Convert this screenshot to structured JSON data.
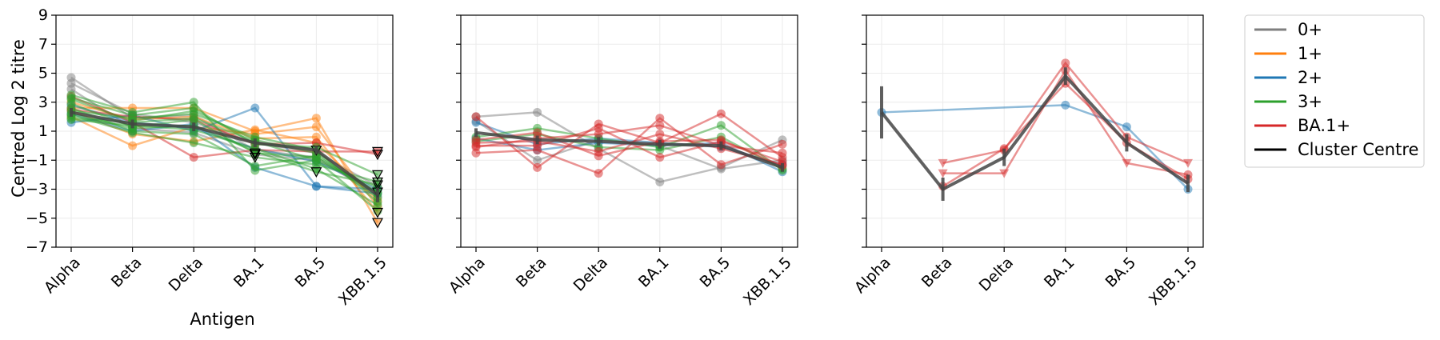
{
  "chart_data": {
    "type": "line",
    "ylabel": "Centred Log 2 titre",
    "xlabel": "Antigen",
    "categories": [
      "Alpha",
      "Beta",
      "Delta",
      "BA.1",
      "BA.5",
      "XBB.1.5"
    ],
    "ylim": [
      -7,
      9
    ],
    "yticks": [
      -7,
      -5,
      -3,
      -1,
      1,
      3,
      5,
      7,
      9
    ],
    "grid": true,
    "legend": {
      "placement": "outside-right",
      "entries": [
        {
          "label": "0+",
          "color": "#7f7f7f"
        },
        {
          "label": "1+",
          "color": "#ff7f0e"
        },
        {
          "label": "2+",
          "color": "#1f77b4"
        },
        {
          "label": "3+",
          "color": "#2ca02c"
        },
        {
          "label": "BA.1+",
          "color": "#d62728"
        },
        {
          "label": "Cluster Centre",
          "color": "#000000"
        }
      ]
    },
    "panels": [
      {
        "name": "panel-1",
        "show_ylabel": true,
        "show_xlabel": true,
        "centre": [
          2.3,
          1.5,
          1.3,
          0.2,
          -0.3,
          -3.4
        ],
        "centre_err": [
          0.3,
          0.3,
          0.3,
          0.3,
          0.3,
          0.5
        ],
        "series": [
          {
            "group": "0+",
            "values": [
              4.7,
              1.9,
              2.1,
              -0.3,
              -0.8,
              -3.5
            ],
            "below": [
              false,
              false,
              false,
              false,
              false,
              false
            ]
          },
          {
            "group": "0+",
            "values": [
              4.3,
              2.2,
              1.6,
              0.2,
              -0.5,
              -2.8
            ],
            "below": [
              false,
              false,
              false,
              false,
              false,
              false
            ]
          },
          {
            "group": "0+",
            "values": [
              3.9,
              1.2,
              0.9,
              -0.6,
              -1.0,
              -3.2
            ],
            "below": [
              false,
              false,
              false,
              true,
              false,
              true
            ]
          },
          {
            "group": "1+",
            "values": [
              2.6,
              2.6,
              2.6,
              1.0,
              1.9,
              -5.3
            ],
            "below": [
              false,
              false,
              false,
              false,
              false,
              true
            ]
          },
          {
            "group": "1+",
            "values": [
              2.0,
              0.0,
              1.3,
              0.8,
              1.3,
              -4.2
            ],
            "below": [
              false,
              false,
              false,
              false,
              false,
              false
            ]
          },
          {
            "group": "1+",
            "values": [
              3.0,
              1.8,
              2.0,
              0.5,
              0.6,
              -4.6
            ],
            "below": [
              false,
              false,
              false,
              false,
              false,
              true
            ]
          },
          {
            "group": "1+",
            "values": [
              2.4,
              0.8,
              0.3,
              1.1,
              0.2,
              -3.8
            ],
            "below": [
              false,
              false,
              false,
              false,
              false,
              false
            ]
          },
          {
            "group": "2+",
            "values": [
              1.6,
              2.1,
              1.0,
              2.6,
              -2.8,
              -3.0
            ],
            "below": [
              false,
              false,
              false,
              false,
              false,
              false
            ]
          },
          {
            "group": "2+",
            "values": [
              2.2,
              1.0,
              1.5,
              -1.5,
              -2.8,
              -3.3
            ],
            "below": [
              false,
              false,
              false,
              false,
              false,
              false
            ]
          },
          {
            "group": "2+",
            "values": [
              2.8,
              1.6,
              1.2,
              -0.2,
              -1.1,
              -3.0
            ],
            "below": [
              false,
              false,
              false,
              false,
              false,
              false
            ]
          },
          {
            "group": "BA.1+",
            "values": [
              3.4,
              1.6,
              -0.8,
              -0.3,
              -0.4,
              -0.4
            ],
            "below": [
              false,
              false,
              false,
              false,
              false,
              true
            ]
          },
          {
            "group": "BA.1+",
            "values": [
              2.5,
              2.0,
              1.8,
              0.1,
              0.2,
              -0.6
            ],
            "below": [
              false,
              false,
              false,
              false,
              false,
              true
            ]
          },
          {
            "group": "3+",
            "values": [
              3.5,
              2.3,
              3.0,
              -1.7,
              -1.0,
              -2.9
            ],
            "below": [
              false,
              false,
              false,
              false,
              false,
              false
            ]
          },
          {
            "group": "3+",
            "values": [
              3.2,
              1.7,
              2.4,
              0.4,
              -0.5,
              -3.6
            ],
            "below": [
              false,
              false,
              false,
              false,
              false,
              false
            ]
          },
          {
            "group": "3+",
            "values": [
              2.9,
              1.3,
              1.8,
              -0.5,
              -0.8,
              -3.3
            ],
            "below": [
              false,
              false,
              false,
              true,
              false,
              false
            ]
          },
          {
            "group": "3+",
            "values": [
              2.4,
              1.9,
              2.2,
              0.6,
              -0.3,
              -3.9
            ],
            "below": [
              false,
              false,
              false,
              false,
              true,
              false
            ]
          },
          {
            "group": "3+",
            "values": [
              2.1,
              0.9,
              0.2,
              -0.8,
              -1.3,
              -2.5
            ],
            "below": [
              false,
              false,
              false,
              true,
              false,
              true
            ]
          },
          {
            "group": "3+",
            "values": [
              1.8,
              1.4,
              1.1,
              -0.2,
              -1.6,
              -4.1
            ],
            "below": [
              false,
              false,
              false,
              false,
              false,
              false
            ]
          },
          {
            "group": "3+",
            "values": [
              3.3,
              2.1,
              2.6,
              0.1,
              -0.1,
              -2.0
            ],
            "below": [
              false,
              false,
              false,
              false,
              false,
              true
            ]
          },
          {
            "group": "3+",
            "values": [
              2.6,
              1.0,
              0.8,
              -1.4,
              -0.7,
              -3.2
            ],
            "below": [
              false,
              false,
              false,
              false,
              false,
              false
            ]
          },
          {
            "group": "3+",
            "values": [
              1.9,
              1.6,
              1.9,
              0.3,
              -1.0,
              -4.5
            ],
            "below": [
              false,
              false,
              false,
              false,
              false,
              false
            ]
          },
          {
            "group": "3+",
            "values": [
              2.2,
              1.2,
              1.4,
              -0.4,
              -1.8,
              -2.7
            ],
            "below": [
              false,
              false,
              false,
              false,
              true,
              true
            ]
          }
        ]
      },
      {
        "name": "panel-2",
        "show_ylabel": false,
        "show_xlabel": false,
        "centre": [
          0.9,
          0.4,
          0.3,
          0.1,
          0.0,
          -1.5
        ],
        "centre_err": [
          0.3,
          0.3,
          0.3,
          0.3,
          0.3,
          0.3
        ],
        "series": [
          {
            "group": "0+",
            "values": [
              2.0,
              2.3,
              -0.2,
              -2.5,
              -1.5,
              0.4
            ],
            "below": [
              false,
              false,
              false,
              false,
              false,
              false
            ]
          },
          {
            "group": "0+",
            "values": [
              1.7,
              -1.0,
              0.4,
              0.0,
              -1.6,
              -1.0
            ],
            "below": [
              false,
              false,
              false,
              false,
              false,
              false
            ]
          },
          {
            "group": "2+",
            "values": [
              1.6,
              0.1,
              0.5,
              0.2,
              -0.1,
              -1.3
            ],
            "below": [
              false,
              false,
              false,
              false,
              false,
              false
            ]
          },
          {
            "group": "2+",
            "values": [
              0.5,
              -0.3,
              0.2,
              0.0,
              0.2,
              -1.8
            ],
            "below": [
              false,
              false,
              false,
              false,
              false,
              false
            ]
          },
          {
            "group": "3+",
            "values": [
              0.6,
              1.2,
              0.5,
              -0.1,
              1.4,
              -1.7
            ],
            "below": [
              false,
              false,
              false,
              false,
              false,
              false
            ]
          },
          {
            "group": "3+",
            "values": [
              0.3,
              0.8,
              -0.1,
              -0.3,
              0.6,
              -1.6
            ],
            "below": [
              false,
              false,
              false,
              false,
              false,
              false
            ]
          },
          {
            "group": "BA.1+",
            "values": [
              2.0,
              -1.5,
              1.5,
              0.2,
              2.2,
              -0.8
            ],
            "below": [
              false,
              false,
              false,
              false,
              false,
              false
            ]
          },
          {
            "group": "BA.1+",
            "values": [
              -0.5,
              -0.3,
              -1.9,
              1.9,
              -1.3,
              0.1
            ],
            "below": [
              false,
              false,
              false,
              false,
              false,
              false
            ]
          },
          {
            "group": "BA.1+",
            "values": [
              0.0,
              0.0,
              1.2,
              -0.8,
              0.3,
              -1.1
            ],
            "below": [
              false,
              false,
              false,
              false,
              false,
              false
            ]
          },
          {
            "group": "BA.1+",
            "values": [
              0.2,
              0.3,
              -0.4,
              0.8,
              -0.2,
              -1.3
            ],
            "below": [
              false,
              false,
              false,
              false,
              false,
              false
            ]
          },
          {
            "group": "BA.1+",
            "values": [
              -0.1,
              0.5,
              0.8,
              1.4,
              0.0,
              -0.5
            ],
            "below": [
              false,
              false,
              false,
              false,
              false,
              false
            ]
          },
          {
            "group": "BA.1+",
            "values": [
              0.4,
              0.9,
              -0.7,
              0.3,
              0.4,
              -1.4
            ],
            "below": [
              false,
              false,
              false,
              false,
              false,
              false
            ]
          }
        ]
      },
      {
        "name": "panel-3",
        "show_ylabel": false,
        "show_xlabel": false,
        "centre": [
          2.3,
          -3.0,
          -0.8,
          4.8,
          0.2,
          -2.6
        ],
        "centre_err": [
          1.8,
          0.8,
          0.6,
          0.6,
          0.6,
          0.6
        ],
        "series": [
          {
            "group": "2+",
            "values": [
              2.3,
              null,
              null,
              2.8,
              1.3,
              -3.0
            ],
            "below": [
              false,
              false,
              false,
              false,
              false,
              false
            ]
          },
          {
            "group": "BA.1+",
            "values": [
              null,
              -1.2,
              -0.3,
              5.7,
              0.6,
              -1.2
            ],
            "below": [
              false,
              true,
              false,
              false,
              false,
              true
            ]
          },
          {
            "group": "BA.1+",
            "values": [
              null,
              -1.9,
              -1.9,
              5.2,
              -1.2,
              -2.0
            ],
            "below": [
              false,
              true,
              true,
              false,
              true,
              false
            ]
          },
          {
            "group": "BA.1+",
            "values": [
              null,
              -2.8,
              -0.2,
              4.3,
              0.2,
              -2.3
            ],
            "below": [
              false,
              false,
              false,
              false,
              false,
              false
            ]
          }
        ]
      }
    ]
  }
}
